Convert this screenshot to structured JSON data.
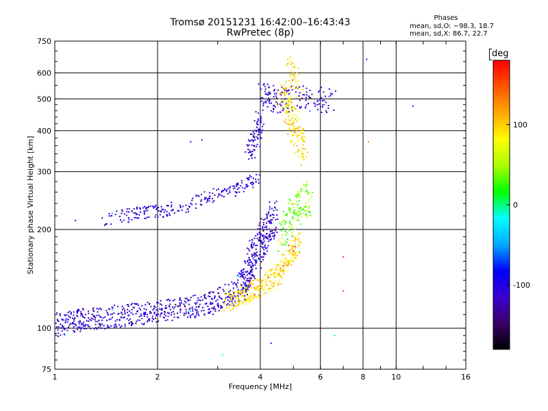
{
  "figure": {
    "title": "Tromsø 20151231 16:42:00–16:43:43",
    "subtitle": "RwPretec (8p)",
    "phase_box": {
      "title": "Phases",
      "o_line": "mean, sd,O: −98.3, 18.7",
      "x_line": "mean, sd,X: 86.7, 22.7"
    }
  },
  "colorbar": {
    "unit": "deg",
    "range": [
      -180,
      180
    ],
    "ticks": [
      100,
      0,
      -100
    ],
    "colormap": [
      "#000000",
      "#3a0066",
      "#3b00d0",
      "#0000ff",
      "#00aaff",
      "#00ffff",
      "#00ff00",
      "#aaff00",
      "#ffff00",
      "#ffaa00",
      "#ff5500",
      "#ff0000"
    ]
  },
  "chart_data": {
    "type": "scatter",
    "xlabel": "Frequency [MHz]",
    "ylabel": "Stationary phase Virtual Height [km]",
    "xscale": "log",
    "yscale": "log",
    "xlim": [
      1,
      16
    ],
    "ylim": [
      75,
      750
    ],
    "xticks": [
      1,
      2,
      4,
      6,
      8,
      10,
      16
    ],
    "yticks": [
      75,
      100,
      200,
      300,
      400,
      500,
      600,
      750
    ],
    "xgrid": [
      2,
      4,
      6,
      8,
      10
    ],
    "ygrid": [
      100,
      200,
      300,
      400,
      500,
      600
    ],
    "color_by": "phase (deg)",
    "traces": [
      {
        "x": [
          1.0,
          1.1,
          1.2,
          1.35,
          1.5,
          1.65,
          1.8,
          2.0,
          2.2,
          2.45,
          2.7,
          2.95,
          3.2,
          3.4,
          3.6,
          3.8
        ],
        "y": [
          102,
          104,
          106,
          107,
          108,
          110,
          111,
          113,
          114,
          116,
          118,
          120,
          125,
          130,
          140,
          155
        ],
        "phase": -110,
        "spread_h": 0.035,
        "n": 620
      },
      {
        "x": [
          3.2,
          3.4,
          3.6,
          3.8,
          4.0,
          4.2,
          4.4,
          4.6,
          4.8,
          5.0,
          5.2
        ],
        "y": [
          120,
          123,
          128,
          130,
          133,
          138,
          142,
          150,
          160,
          170,
          185
        ],
        "phase": 95,
        "spread_h": 0.03,
        "n": 330
      },
      {
        "x": [
          3.6,
          3.8,
          4.0,
          4.2,
          4.4
        ],
        "y": [
          140,
          160,
          180,
          200,
          215
        ],
        "phase": -110,
        "spread_h": 0.06,
        "n": 230
      },
      {
        "x": [
          4.6,
          4.8,
          5.0,
          5.2,
          5.4,
          5.6
        ],
        "y": [
          190,
          210,
          225,
          235,
          245,
          250
        ],
        "phase": 40,
        "spread_h": 0.05,
        "n": 140
      },
      {
        "x": [
          1.4,
          1.6,
          1.8,
          2.0,
          2.2,
          2.5,
          2.8,
          3.1,
          3.4,
          3.7,
          3.9
        ],
        "y": [
          213,
          220,
          225,
          228,
          230,
          238,
          250,
          260,
          265,
          275,
          285
        ],
        "phase": -105,
        "spread_h": 0.02,
        "n": 230
      },
      {
        "x": [
          3.7,
          3.8,
          3.9,
          3.95,
          4.0
        ],
        "y": [
          340,
          360,
          380,
          410,
          450
        ],
        "phase": -110,
        "spread_h": 0.03,
        "n": 80
      },
      {
        "x": [
          4.0,
          4.2,
          4.4,
          4.6,
          5.0,
          5.4,
          5.8,
          6.2,
          6.6
        ],
        "y": [
          520,
          510,
          500,
          495,
          500,
          505,
          500,
          495,
          490
        ],
        "phase": -110,
        "spread_h": 0.04,
        "n": 150
      },
      {
        "x": [
          4.6,
          4.8,
          5.0,
          5.2,
          5.4
        ],
        "y": [
          520,
          480,
          420,
          380,
          350
        ],
        "phase": 95,
        "spread_h": 0.05,
        "n": 160
      },
      {
        "x": [
          4.8,
          5.0,
          5.2
        ],
        "y": [
          640,
          600,
          560
        ],
        "phase": 95,
        "spread_h": 0.05,
        "n": 40
      }
    ],
    "scatter_points": [
      {
        "x": 1.15,
        "y": 213,
        "phase": -110
      },
      {
        "x": 2.5,
        "y": 370,
        "phase": -110
      },
      {
        "x": 2.7,
        "y": 375,
        "phase": -110
      },
      {
        "x": 8.2,
        "y": 660,
        "phase": -110
      },
      {
        "x": 11.2,
        "y": 475,
        "phase": -110
      },
      {
        "x": 7.0,
        "y": 165,
        "phase": 160
      },
      {
        "x": 7.0,
        "y": 130,
        "phase": 160
      },
      {
        "x": 3.1,
        "y": 83,
        "phase": -10
      },
      {
        "x": 4.3,
        "y": 90,
        "phase": -110
      },
      {
        "x": 6.6,
        "y": 95,
        "phase": -30
      },
      {
        "x": 8.3,
        "y": 370,
        "phase": 130
      }
    ]
  }
}
